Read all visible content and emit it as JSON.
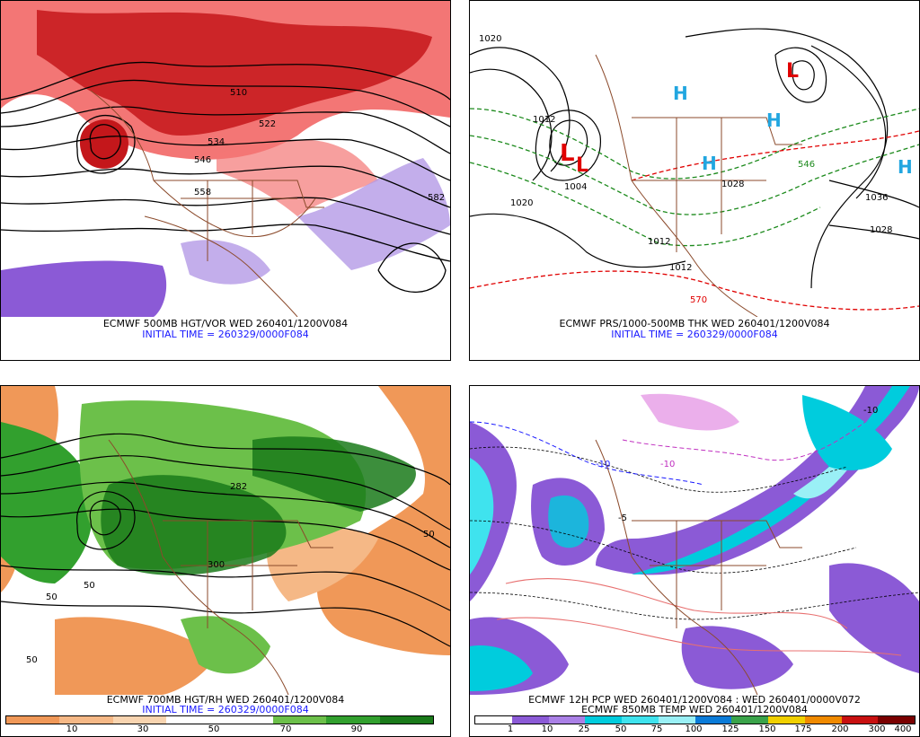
{
  "panels": [
    {
      "title": "ECMWF 500MB HGT/VOR WED 260401/1200V084",
      "init": "INITIAL TIME = 260329/0000F084",
      "contour_labels": [
        "510",
        "522",
        "534",
        "546",
        "558",
        "582"
      ],
      "colors": {
        "vorticity_high": "#c4171b",
        "vorticity_mid": "#f37675",
        "vorticity_neg": "#8b5ad6"
      }
    },
    {
      "title": "ECMWF PRS/1000-500MB THK WED 260401/1200V084",
      "init": "INITIAL TIME = 260329/0000F084",
      "isobar_labels": [
        "1020",
        "1012",
        "1004",
        "1020",
        "1028",
        "1036",
        "1028",
        "1012",
        "1012"
      ],
      "thickness_labels": [
        "570",
        "546"
      ],
      "pressure_centers": [
        "L",
        "L",
        "H",
        "H",
        "H",
        "H",
        "L"
      ],
      "colors": {
        "low": "#e00000",
        "high": "#22a6e0",
        "thickness_cold": "#1c8a1c",
        "thickness_warm": "#e00000"
      }
    },
    {
      "title": "ECMWF 700MB HGT/RH WED 260401/1200V084",
      "init": "INITIAL TIME = 260329/0000F084",
      "contour_labels": [
        "282",
        "300",
        "50",
        "50",
        "50",
        "50"
      ],
      "colorbar": {
        "ticks": [
          "10",
          "30",
          "50",
          "70",
          "90"
        ],
        "colors": [
          "#f09858",
          "#f5b886",
          "#f8d4b0",
          "#ffffff",
          "#ffffff",
          "#6cc04a",
          "#32a02e",
          "#1a7a1a"
        ]
      }
    },
    {
      "title": "ECMWF 12H PCP WED 260401/1200V084 : WED 260401/0000V072",
      "subtitle": "ECMWF 850MB TEMP WED 260401/1200V084",
      "temp_labels": [
        "-10",
        "-10",
        "-10",
        "-5"
      ],
      "colorbar": {
        "ticks": [
          "1",
          "10",
          "25",
          "50",
          "75",
          "100",
          "125",
          "150",
          "175",
          "200",
          "300",
          "400"
        ],
        "colors": [
          "#ffffff",
          "#8b5ad6",
          "#aa80e6",
          "#00ccdd",
          "#3fe3ee",
          "#9af0f6",
          "#0a7bd8",
          "#3aa34a",
          "#f0d000",
          "#f08a00",
          "#c81010",
          "#7a0000"
        ]
      }
    }
  ]
}
